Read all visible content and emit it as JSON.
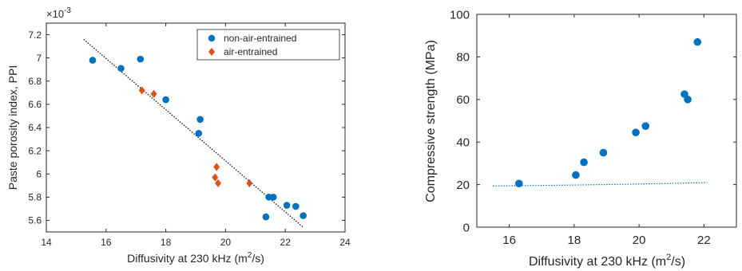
{
  "chart_data": [
    {
      "type": "scatter",
      "title": "",
      "xlabel_main": "Diffusivity at 230 kHz (m",
      "xlabel_sup": "2",
      "xlabel_tail": "/s)",
      "ylabel": "Paste porosity index, PPI",
      "y_multiplier_base": "×10",
      "y_multiplier_exp": "-3",
      "xlim": [
        14,
        24
      ],
      "ylim": [
        5.5,
        7.3
      ],
      "xticks": [
        "14",
        "16",
        "18",
        "20",
        "22",
        "24"
      ],
      "yticks": [
        "5.6",
        "5.8",
        "6",
        "6.2",
        "6.4",
        "6.6",
        "6.8",
        "7",
        "7.2"
      ],
      "ytick_values": [
        5.6,
        5.8,
        6.0,
        6.2,
        6.4,
        6.6,
        6.8,
        7.0,
        7.2
      ],
      "xtick_values": [
        14,
        16,
        18,
        20,
        22,
        24
      ],
      "legend_position": "top-right",
      "series": [
        {
          "name": "non-air-entrained",
          "marker": "circle",
          "color": "#0072BD",
          "points": [
            [
              15.55,
              6.98
            ],
            [
              16.5,
              6.91
            ],
            [
              17.15,
              6.99
            ],
            [
              18.0,
              6.64
            ],
            [
              19.15,
              6.47
            ],
            [
              19.1,
              6.35
            ],
            [
              21.45,
              5.8
            ],
            [
              21.6,
              5.8
            ],
            [
              22.05,
              5.73
            ],
            [
              22.35,
              5.72
            ],
            [
              21.35,
              5.63
            ],
            [
              22.6,
              5.64
            ]
          ]
        },
        {
          "name": "air-entrained",
          "marker": "diamond",
          "color": "#D95319",
          "points": [
            [
              17.2,
              6.72
            ],
            [
              17.6,
              6.69
            ],
            [
              19.7,
              6.06
            ],
            [
              19.65,
              5.97
            ],
            [
              19.75,
              5.92
            ],
            [
              20.8,
              5.92
            ]
          ]
        }
      ],
      "fit": {
        "kind": "linear",
        "style": "dotted",
        "color": "#000000",
        "from": [
          15.25,
          7.16
        ],
        "to": [
          22.6,
          5.54
        ]
      }
    },
    {
      "type": "scatter",
      "title": "",
      "xlabel_main": "Diffusivity at 230 kHz (m",
      "xlabel_sup": "2",
      "xlabel_tail": "/s)",
      "ylabel": "Compressive strength (MPa)",
      "xlim": [
        15,
        23
      ],
      "ylim": [
        0,
        100
      ],
      "xticks": [
        "16",
        "18",
        "20",
        "22"
      ],
      "xtick_values": [
        16,
        18,
        20,
        22
      ],
      "yticks": [
        "0",
        "20",
        "40",
        "60",
        "80",
        "100"
      ],
      "ytick_values": [
        0,
        20,
        40,
        60,
        80,
        100
      ],
      "series": [
        {
          "marker": "circle",
          "color": "#0072BD",
          "points": [
            [
              16.3,
              20.5
            ],
            [
              18.05,
              24.5
            ],
            [
              18.3,
              30.5
            ],
            [
              18.9,
              35.0
            ],
            [
              19.9,
              44.5
            ],
            [
              20.2,
              47.5
            ],
            [
              21.4,
              62.5
            ],
            [
              21.5,
              60.0
            ],
            [
              21.8,
              87.0
            ]
          ]
        }
      ],
      "fit": {
        "kind": "exponential",
        "style": "dotted",
        "color": "#0072BD",
        "a": 19.3,
        "b": 0.0152,
        "c": 1.0,
        "x0": 15.0,
        "x_range": [
          15.5,
          22.1
        ]
      }
    }
  ]
}
